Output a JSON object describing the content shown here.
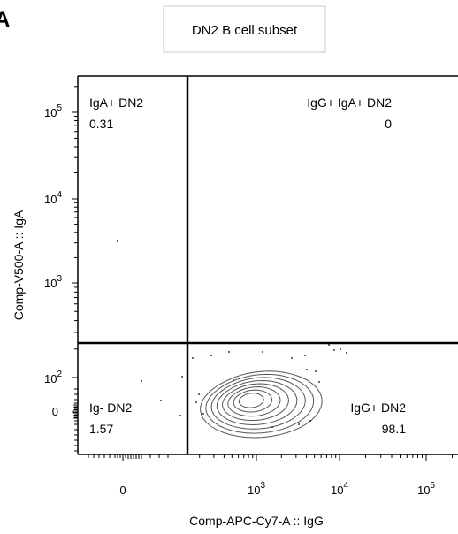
{
  "panel_label": "A",
  "chart_data": {
    "type": "contour",
    "title": "DN2 B cell subset",
    "xlabel": "Comp-APC-Cy7-A :: IgG",
    "ylabel": "Comp-V500-A :: IgA",
    "x_ticks": [
      {
        "base": "0",
        "exp": "",
        "value": 0
      },
      {
        "base": "10",
        "exp": "3",
        "value": 1000
      },
      {
        "base": "10",
        "exp": "4",
        "value": 10000
      },
      {
        "base": "10",
        "exp": "5",
        "value": 100000
      }
    ],
    "y_ticks": [
      {
        "base": "0",
        "exp": "",
        "value": 0
      },
      {
        "base": "10",
        "exp": "2",
        "value": 100
      },
      {
        "base": "10",
        "exp": "3",
        "value": 1000
      },
      {
        "base": "10",
        "exp": "4",
        "value": 10000
      },
      {
        "base": "10",
        "exp": "5",
        "value": 100000
      }
    ],
    "gates": [
      {
        "name": "IgA+ DN2",
        "value": "0.31",
        "quadrant": "top-left"
      },
      {
        "name": "IgG+ IgA+ DN2",
        "value": "0",
        "quadrant": "top-right"
      },
      {
        "name": "Ig- DN2",
        "value": "1.57",
        "quadrant": "bottom-left"
      },
      {
        "name": "IgG+ DN2",
        "value": "98.1",
        "quadrant": "bottom-right"
      }
    ],
    "quadrant_percentages": {
      "IgA+ DN2": 0.31,
      "IgG+ IgA+ DN2": 0,
      "Ig- DN2": 1.57,
      "IgG+ DN2": 98.1
    },
    "contour_center": {
      "x": 800,
      "y": 0
    },
    "contour_levels": 8
  }
}
